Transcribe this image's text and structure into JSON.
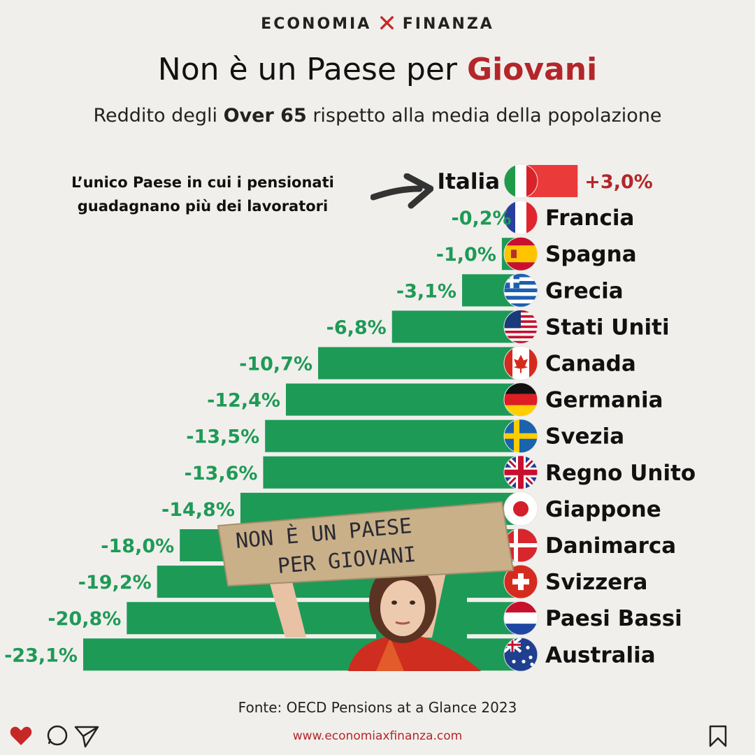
{
  "brand": {
    "left": "ECONOMIA",
    "mark": "✕",
    "right": "FINANZA"
  },
  "title": {
    "main": "Non è un Paese per",
    "highlight": "Giovani"
  },
  "subtitle": {
    "pre": "Reddito degli",
    "bold": "Over 65",
    "post": "rispetto alla media della popolazione"
  },
  "note": {
    "line1": "L’unico Paese in cui i pensionati",
    "line2": "guadagnano più dei lavoratori"
  },
  "sign_text": {
    "line1": "NON È UN PAESE",
    "line2": "PER GIOVANI"
  },
  "source": "Fonte: OECD Pensions at a Glance 2023",
  "website": "www.economiaxfinanza.com",
  "colors": {
    "negative": "#1e9a57",
    "positive": "#ea3a3a",
    "accent": "#b3262a",
    "label_negative": "#1e9a57",
    "label_positive": "#b3262a"
  },
  "icons": [
    "heart-icon",
    "comment-icon",
    "send-icon",
    "bookmark-icon"
  ],
  "chart_data": {
    "type": "bar",
    "orientation": "horizontal",
    "categories": [
      "Italia",
      "Francia",
      "Spagna",
      "Grecia",
      "Stati Uniti",
      "Canada",
      "Germania",
      "Svezia",
      "Regno Unito",
      "Giappone",
      "Danimarca",
      "Svizzera",
      "Paesi Bassi",
      "Australia"
    ],
    "values": [
      3.0,
      -0.2,
      -1.0,
      -3.1,
      -6.8,
      -10.7,
      -12.4,
      -13.5,
      -13.6,
      -14.8,
      -18.0,
      -19.2,
      -20.8,
      -23.1
    ],
    "value_labels": [
      "+3,0%",
      "-0,2%",
      "-1,0%",
      "-3,1%",
      "-6,8%",
      "-10,7%",
      "-12,4%",
      "-13,5%",
      "-13,6%",
      "-14,8%",
      "-18,0%",
      "-19,2%",
      "-20,8%",
      "-23,1%"
    ],
    "flags": [
      "italy",
      "france",
      "spain",
      "greece",
      "usa",
      "canada",
      "germany",
      "sweden",
      "uk",
      "japan",
      "denmark",
      "switzerland",
      "netherlands",
      "australia"
    ],
    "title": "Non è un Paese per Giovani",
    "subtitle": "Reddito degli Over 65 rispetto alla media della popolazione",
    "grid": false
  }
}
